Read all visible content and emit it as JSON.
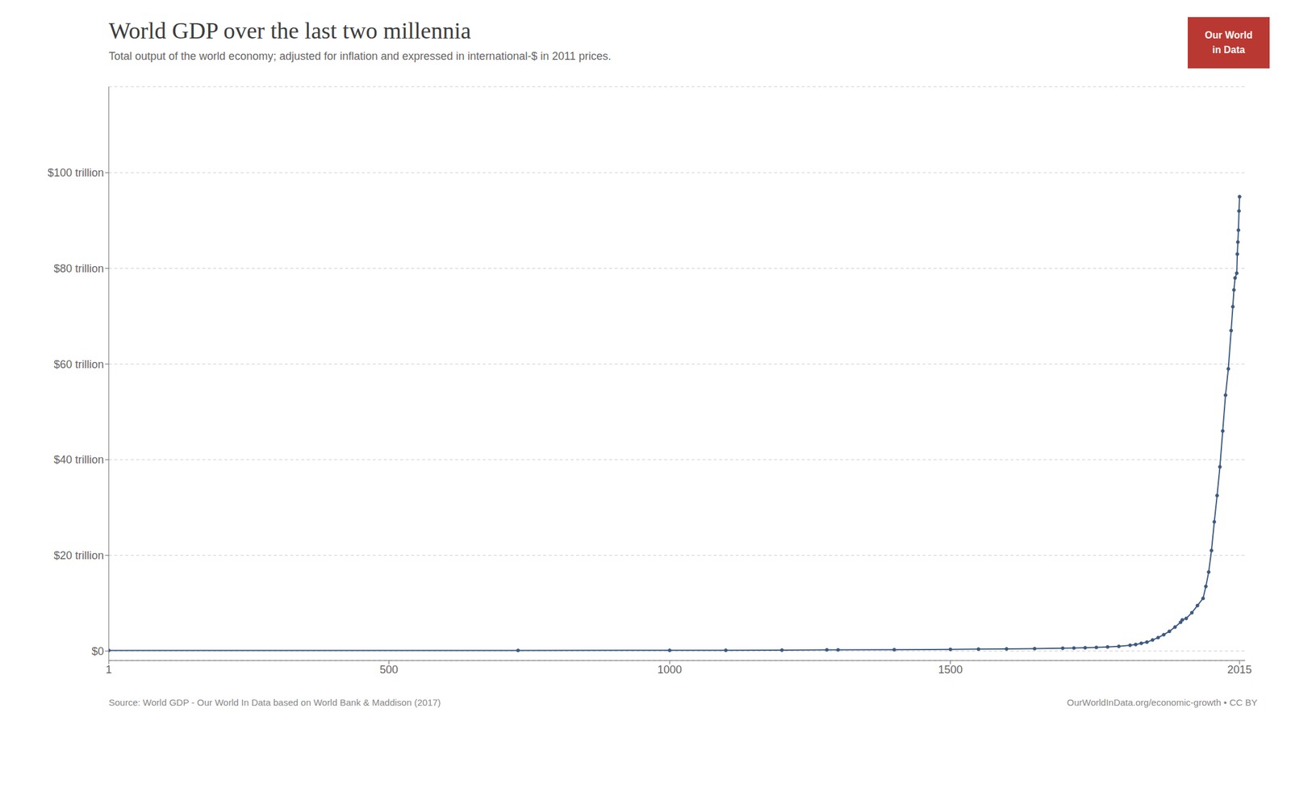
{
  "chart_data": {
    "type": "line",
    "title": "World GDP over the last two millennia",
    "subtitle": "Total output of the world economy; adjusted for inflation and expressed in international-$ in 2011 prices.",
    "source": [
      "Source: World GDP - Our World In Data based on World Bank & Maddison (2017)",
      "OurWorldInData.org/economic-growth • CC BY"
    ],
    "logo": [
      "Our World",
      "in Data"
    ],
    "x": [
      1,
      730,
      1000,
      1100,
      1200,
      1280,
      1300,
      1400,
      1500,
      1550,
      1600,
      1650,
      1700,
      1720,
      1740,
      1760,
      1780,
      1800,
      1820,
      1830,
      1840,
      1850,
      1860,
      1870,
      1880,
      1890,
      1900,
      1910,
      1913,
      1920,
      1930,
      1940,
      1950,
      1955,
      1960,
      1965,
      1970,
      1975,
      1980,
      1985,
      1990,
      1995,
      2000,
      2003,
      2005,
      2007,
      2010,
      2011,
      2012,
      2013,
      2014,
      2015
    ],
    "values": [
      0.105,
      0.12,
      0.13,
      0.15,
      0.18,
      0.24,
      0.23,
      0.27,
      0.33,
      0.38,
      0.43,
      0.49,
      0.57,
      0.61,
      0.67,
      0.74,
      0.84,
      0.96,
      1.2,
      1.35,
      1.6,
      1.85,
      2.3,
      2.8,
      3.4,
      4.1,
      5.0,
      6.0,
      6.5,
      6.8,
      8.0,
      9.5,
      11.0,
      13.5,
      16.5,
      21.0,
      27.0,
      32.5,
      38.5,
      46.0,
      53.5,
      59.0,
      67.0,
      72.0,
      75.5,
      78.0,
      79.0,
      83.0,
      85.5,
      88.0,
      92.0,
      95.0
    ],
    "color": "#3d5a80",
    "marker": "circle",
    "line_style": "solid",
    "xlim": [
      1,
      2025
    ],
    "xticks": [
      1,
      500,
      1000,
      1500,
      2015
    ],
    "ylim": [
      -2,
      118
    ],
    "yticks": [
      {
        "value": 0,
        "label": "$0"
      },
      {
        "value": 20,
        "label": "$20 trillion"
      },
      {
        "value": 40,
        "label": "$40 trillion"
      },
      {
        "value": 60,
        "label": "$60 trillion"
      },
      {
        "value": 80,
        "label": "$80 trillion"
      },
      {
        "value": 100,
        "label": "$100 trillion"
      }
    ],
    "grid": true
  }
}
